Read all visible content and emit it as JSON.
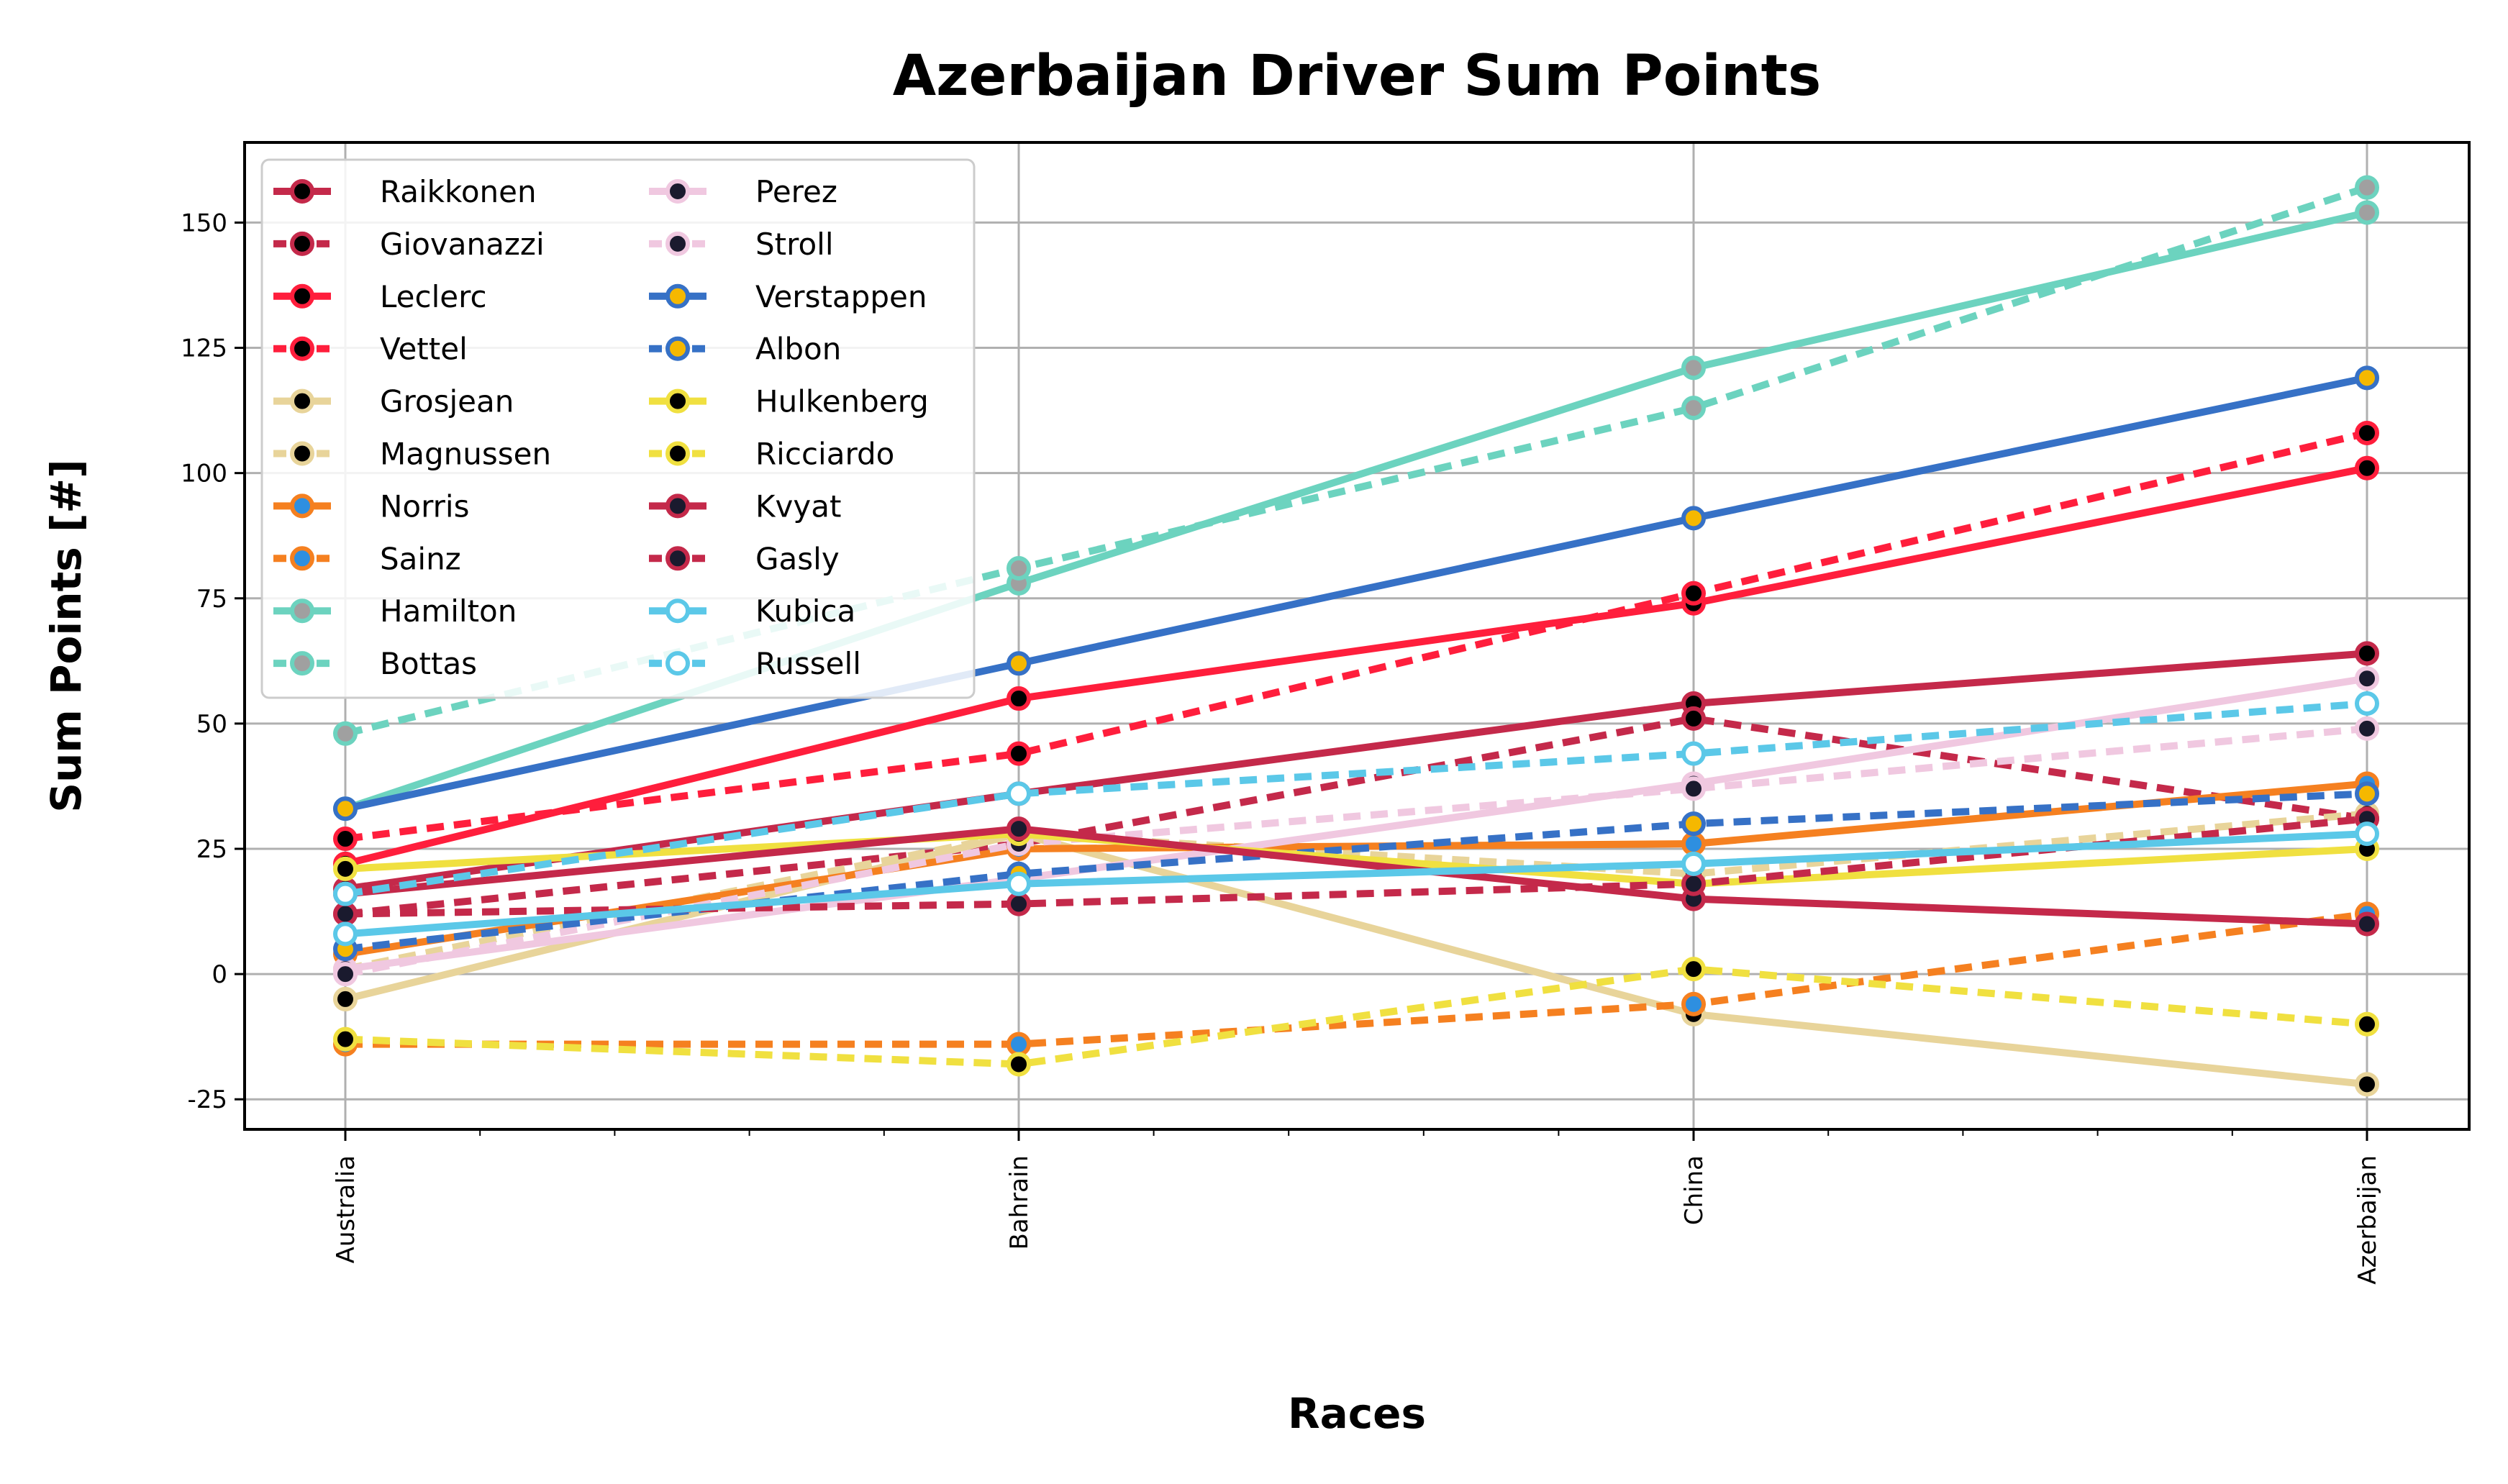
{
  "chart_data": {
    "type": "line",
    "title": "Azerbaijan Driver Sum Points",
    "xlabel": "Races",
    "ylabel": "Sum Points [#]",
    "categories": [
      "Australia",
      "Bahrain",
      "China",
      "Azerbaijan"
    ],
    "ylim": [
      -31,
      166
    ],
    "yticks": [
      -25,
      0,
      25,
      50,
      75,
      100,
      125,
      150
    ],
    "grid": true,
    "legend_position": "top-left",
    "legend_columns": 2,
    "series": [
      {
        "name": "Raikkonen",
        "values": [
          17,
          36,
          54,
          64
        ],
        "color": "#c4294a",
        "dash": "solid",
        "marker_face": "#000000"
      },
      {
        "name": "Giovanazzi",
        "values": [
          12,
          26,
          51,
          31
        ],
        "color": "#c4294a",
        "dash": "dotted",
        "marker_face": "#000000"
      },
      {
        "name": "Leclerc",
        "values": [
          22,
          55,
          74,
          101
        ],
        "color": "#ff1e3c",
        "dash": "solid",
        "marker_face": "#000000"
      },
      {
        "name": "Vettel",
        "values": [
          27,
          44,
          76,
          108
        ],
        "color": "#ff1e3c",
        "dash": "dotted",
        "marker_face": "#000000"
      },
      {
        "name": "Grosjean",
        "values": [
          -5,
          28,
          -8,
          -22
        ],
        "color": "#e8d49a",
        "dash": "solid",
        "marker_face": "#000000"
      },
      {
        "name": "Magnussen",
        "values": [
          1,
          28,
          20,
          32
        ],
        "color": "#e8d49a",
        "dash": "dotted",
        "marker_face": "#000000"
      },
      {
        "name": "Norris",
        "values": [
          4,
          25,
          26,
          38
        ],
        "color": "#f58020",
        "dash": "solid",
        "marker_face": "#2e8fe0"
      },
      {
        "name": "Sainz",
        "values": [
          -14,
          -14,
          -6,
          12
        ],
        "color": "#f58020",
        "dash": "dotted",
        "marker_face": "#2e8fe0"
      },
      {
        "name": "Hamilton",
        "values": [
          33,
          78,
          121,
          152
        ],
        "color": "#6cd3bf",
        "dash": "solid",
        "marker_face": "#a0a0a0"
      },
      {
        "name": "Bottas",
        "values": [
          48,
          81,
          113,
          157
        ],
        "color": "#6cd3bf",
        "dash": "dotted",
        "marker_face": "#a0a0a0"
      },
      {
        "name": "Perez",
        "values": [
          1,
          19,
          38,
          59
        ],
        "color": "#f0c8e0",
        "dash": "solid",
        "marker_face": "#1a1a2e"
      },
      {
        "name": "Stroll",
        "values": [
          0,
          26,
          37,
          49
        ],
        "color": "#f0c8e0",
        "dash": "dotted",
        "marker_face": "#1a1a2e"
      },
      {
        "name": "Verstappen",
        "values": [
          33,
          62,
          91,
          119
        ],
        "color": "#3671c6",
        "dash": "solid",
        "marker_face": "#f5b800"
      },
      {
        "name": "Albon",
        "values": [
          5,
          20,
          30,
          36
        ],
        "color": "#3671c6",
        "dash": "dotted",
        "marker_face": "#f5b800"
      },
      {
        "name": "Hulkenberg",
        "values": [
          21,
          28,
          18,
          25
        ],
        "color": "#f0e040",
        "dash": "solid",
        "marker_face": "#000000"
      },
      {
        "name": "Ricciardo",
        "values": [
          -13,
          -18,
          1,
          -10
        ],
        "color": "#f0e040",
        "dash": "dotted",
        "marker_face": "#000000"
      },
      {
        "name": "Kvyat",
        "values": [
          16,
          29,
          15,
          10
        ],
        "color": "#c4294a",
        "dash": "solid",
        "marker_face": "#1a1a2e"
      },
      {
        "name": "Gasly",
        "values": [
          12,
          14,
          18,
          31
        ],
        "color": "#c4294a",
        "dash": "dotted",
        "marker_face": "#1a1a2e"
      },
      {
        "name": "Kubica",
        "values": [
          8,
          18,
          22,
          28
        ],
        "color": "#5bc8e8",
        "dash": "solid",
        "marker_face": "#ffffff"
      },
      {
        "name": "Russell",
        "values": [
          16,
          36,
          44,
          54
        ],
        "color": "#5bc8e8",
        "dash": "dotted",
        "marker_face": "#ffffff"
      }
    ]
  }
}
